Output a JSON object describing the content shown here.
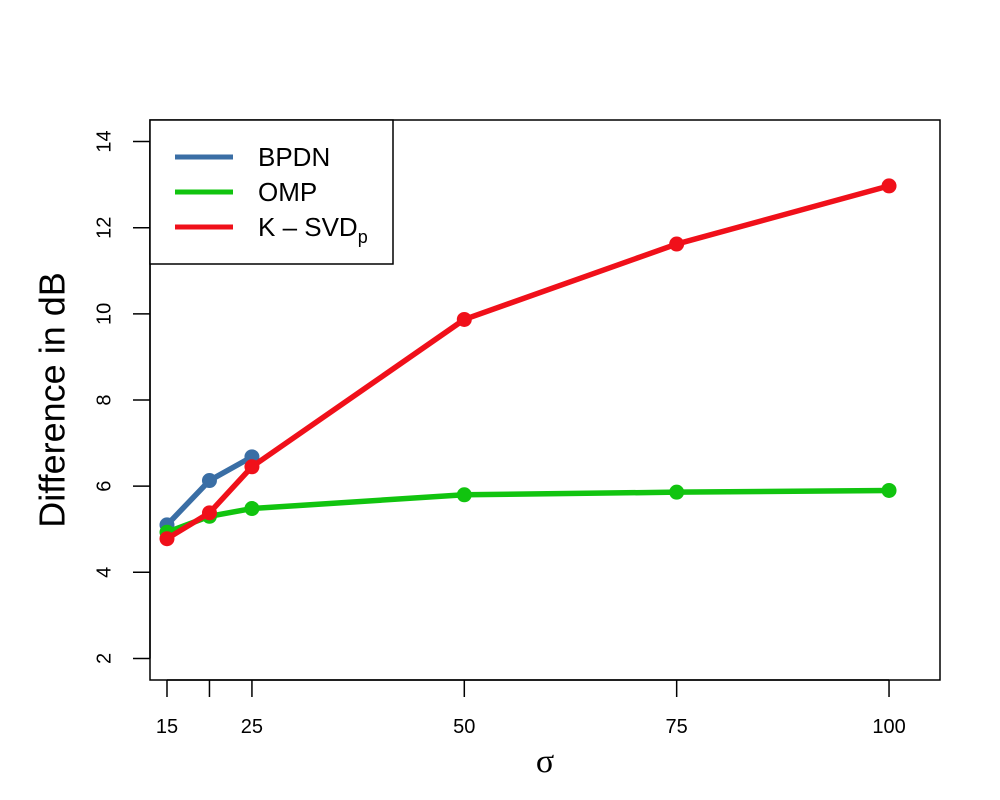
{
  "chart_data": {
    "type": "line",
    "title": "",
    "xlabel": "σ",
    "ylabel": "Difference in dB",
    "xlim": [
      13,
      106
    ],
    "ylim": [
      1.5,
      14.5
    ],
    "x_ticks": [
      15,
      20,
      25,
      50,
      75,
      100
    ],
    "x_tick_labels": [
      "15",
      "",
      "25",
      "50",
      "75",
      "100"
    ],
    "y_ticks": [
      2,
      4,
      6,
      8,
      10,
      12,
      14
    ],
    "y_tick_labels": [
      "2",
      "4",
      "6",
      "8",
      "10",
      "12",
      "14"
    ],
    "grid": false,
    "legend": {
      "position": "top-left",
      "entries": [
        {
          "label": "BPDN",
          "color": "#3a6ea5"
        },
        {
          "label": "OMP",
          "color": "#11c40f"
        },
        {
          "label_main": "K – SVD",
          "label_sub": "p",
          "color": "#f0101a"
        }
      ]
    },
    "series": [
      {
        "name": "BPDN",
        "color": "#3a6ea5",
        "x": [
          15,
          20,
          25
        ],
        "y": [
          5.1,
          6.13,
          6.68
        ]
      },
      {
        "name": "OMP",
        "color": "#11c40f",
        "x": [
          15,
          20,
          25,
          50,
          75,
          100
        ],
        "y": [
          4.93,
          5.3,
          5.48,
          5.8,
          5.86,
          5.9
        ]
      },
      {
        "name": "K – SVDp",
        "color": "#f0101a",
        "x": [
          15,
          20,
          25,
          50,
          75,
          100
        ],
        "y": [
          4.78,
          5.38,
          6.45,
          9.87,
          11.62,
          12.97
        ]
      }
    ]
  }
}
